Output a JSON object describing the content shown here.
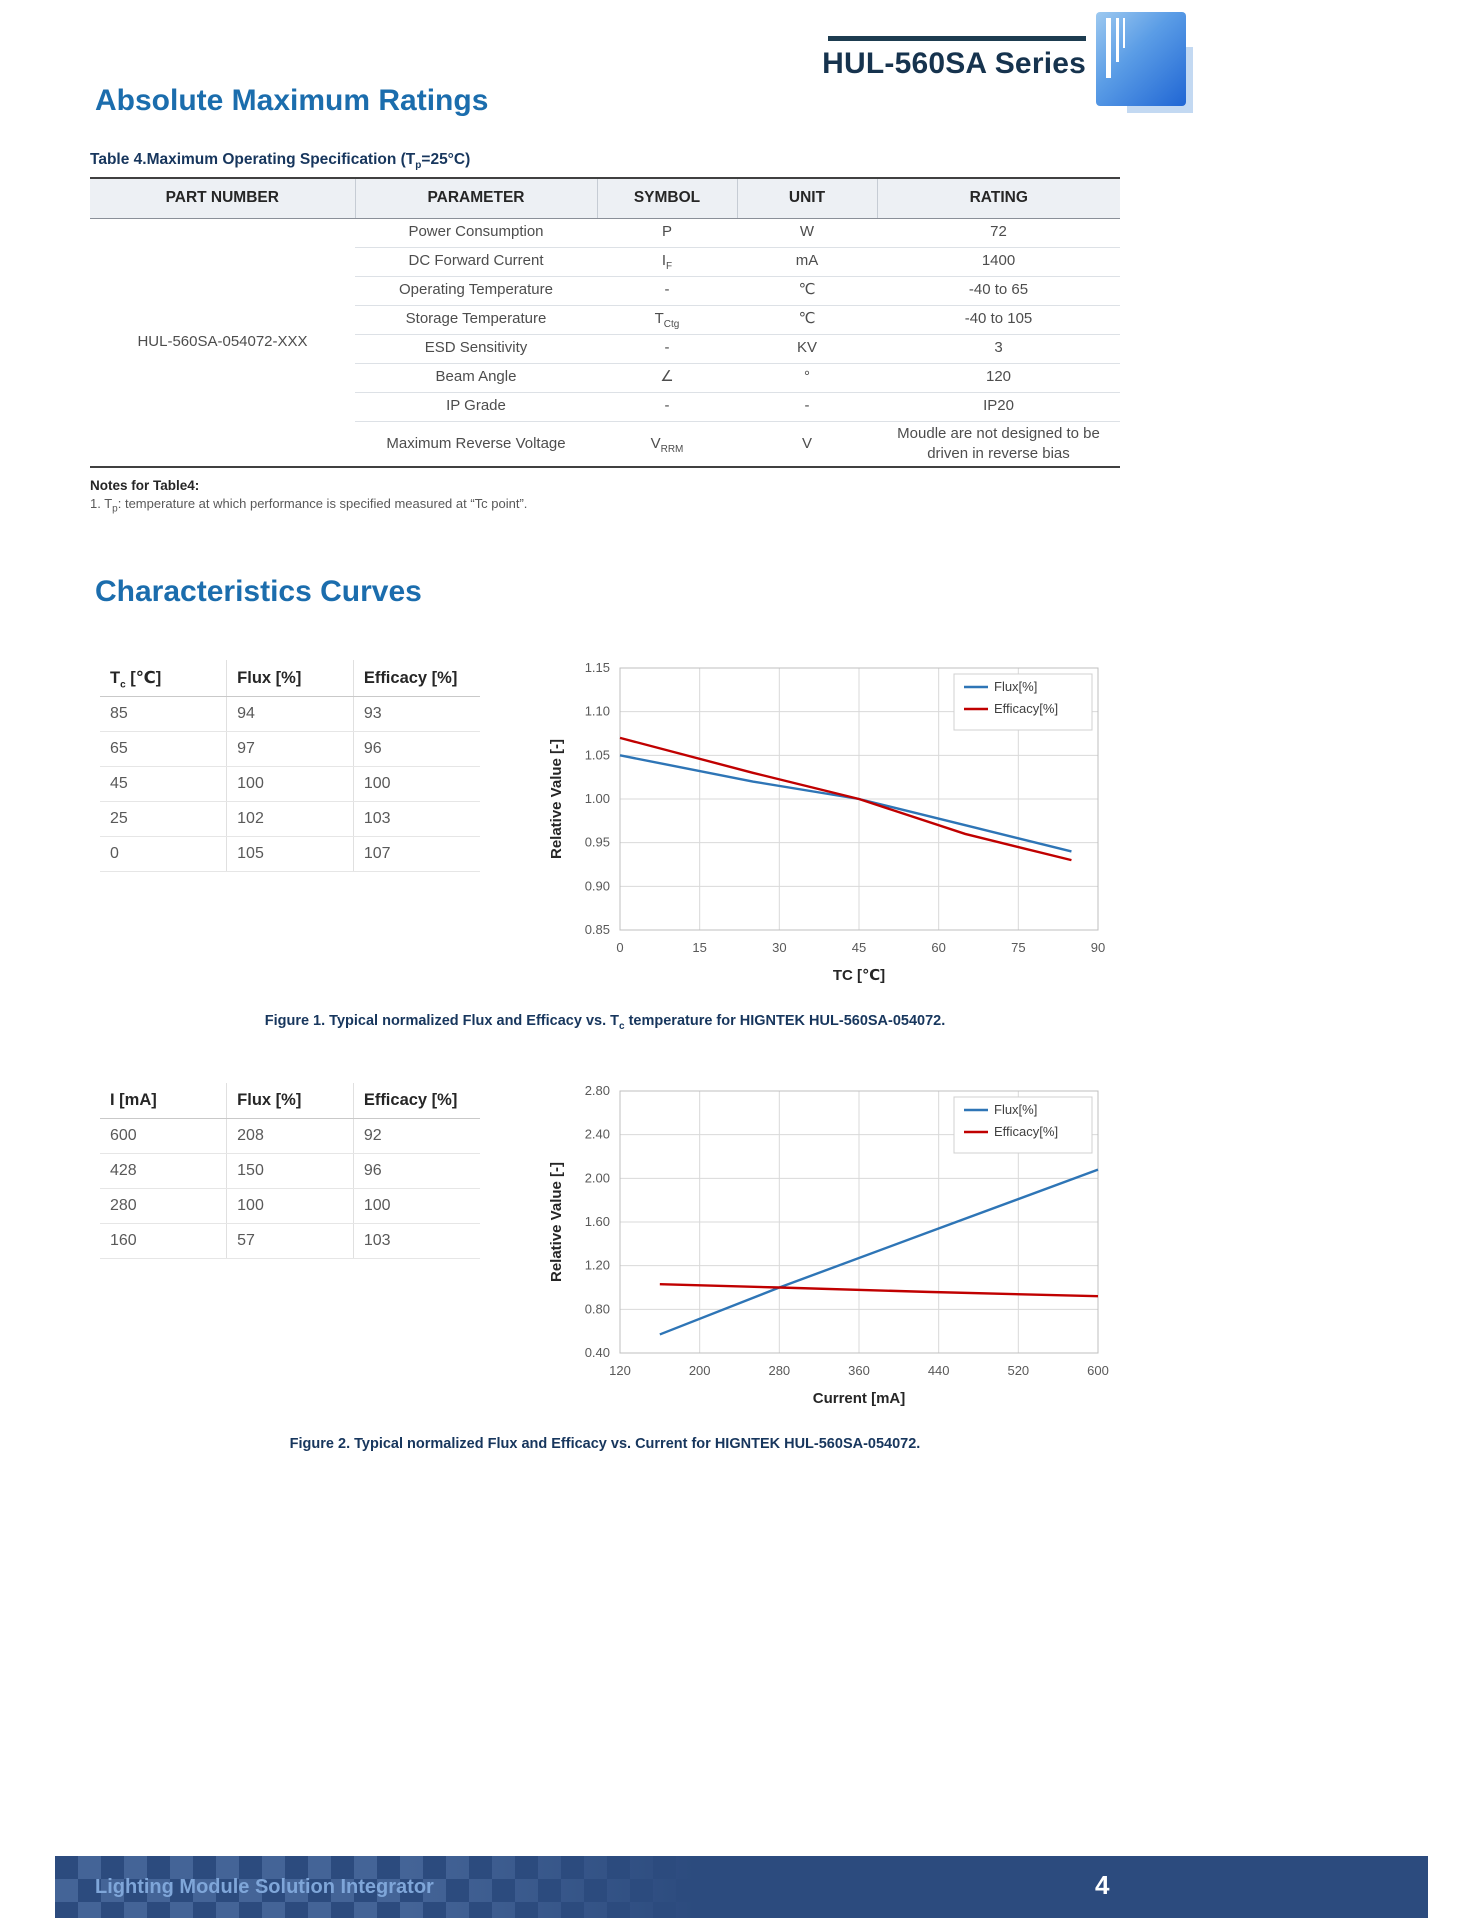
{
  "header": {
    "series_title": "HUL-560SA Series"
  },
  "abs_max": {
    "heading": "Absolute Maximum Ratings",
    "caption": {
      "pre": "Table 4.Maximum Operating Specification (T",
      "sub": "p",
      "post": "=25°C)"
    },
    "table": {
      "headers": [
        "PART NUMBER",
        "PARAMETER",
        "SYMBOL",
        "UNIT",
        "RATING"
      ],
      "part_number": "HUL-560SA-054072-XXX",
      "rows": [
        {
          "parameter": "Power Consumption",
          "symbol": {
            "pre": "P"
          },
          "unit": "W",
          "rating": "72"
        },
        {
          "parameter": "DC Forward Current",
          "symbol": {
            "pre": "I",
            "sub": "F"
          },
          "unit": "mA",
          "rating": "1400"
        },
        {
          "parameter": "Operating Temperature",
          "symbol": {
            "pre": "-"
          },
          "unit": "℃",
          "rating": "-40 to 65"
        },
        {
          "parameter": "Storage Temperature",
          "symbol": {
            "pre": "T",
            "sub": "Ctg"
          },
          "unit": "℃",
          "rating": "-40 to 105"
        },
        {
          "parameter": "ESD Sensitivity",
          "symbol": {
            "pre": "-"
          },
          "unit": "KV",
          "rating": "3"
        },
        {
          "parameter": "Beam Angle",
          "symbol": {
            "pre": "∠"
          },
          "unit": "°",
          "rating": "120"
        },
        {
          "parameter": "IP Grade",
          "symbol": {
            "pre": "-"
          },
          "unit": "-",
          "rating": "IP20"
        },
        {
          "parameter": "Maximum Reverse Voltage",
          "symbol": {
            "pre": "V",
            "sub": "RRM"
          },
          "unit": "V",
          "rating": "Moudle are not designed to be driven in reverse bias"
        }
      ]
    },
    "notes_title": "Notes for Table4:",
    "note1": {
      "pre": "1. T",
      "sub": "p",
      "post": ": temperature at which performance is specified measured at “Tc point”."
    }
  },
  "curves": {
    "heading": "Characteristics Curves",
    "table1": {
      "headers": [
        {
          "pre": "T",
          "sub": "c",
          "post": " [℃]"
        },
        {
          "pre": "Flux [%]"
        },
        {
          "pre": "Efficacy [%]"
        }
      ],
      "rows": [
        [
          "85",
          "94",
          "93"
        ],
        [
          "65",
          "97",
          "96"
        ],
        [
          "45",
          "100",
          "100"
        ],
        [
          "25",
          "102",
          "103"
        ],
        [
          "0",
          "105",
          "107"
        ]
      ]
    },
    "fig1_caption": {
      "pre": "Figure 1. Typical normalized Flux and Efficacy vs. T",
      "sub": "c",
      "post": " temperature for HIGNTEK HUL-560SA-054072."
    },
    "table2": {
      "headers": [
        {
          "pre": "I [mA]"
        },
        {
          "pre": "Flux [%]"
        },
        {
          "pre": "Efficacy [%]"
        }
      ],
      "rows": [
        [
          "600",
          "208",
          "92"
        ],
        [
          "428",
          "150",
          "96"
        ],
        [
          "280",
          "100",
          "100"
        ],
        [
          "160",
          "57",
          "103"
        ]
      ]
    },
    "fig2_caption": "Figure 2. Typical normalized Flux and Efficacy vs. Current for HIGNTEK HUL-560SA-054072."
  },
  "chart_data": [
    {
      "type": "line",
      "name": "flux-efficacy-vs-temperature",
      "title": "",
      "xlabel": "TC [℃]",
      "ylabel": "Relative Value [-]",
      "xlim": [
        0,
        90
      ],
      "ylim": [
        0.85,
        1.15
      ],
      "xticks": [
        "0",
        "15",
        "30",
        "45",
        "60",
        "75",
        "90"
      ],
      "yticks": [
        "0.85",
        "0.90",
        "0.95",
        "1.00",
        "1.05",
        "1.10",
        "1.15"
      ],
      "grid": true,
      "legend_position": "top-right",
      "series": [
        {
          "name": "Flux[%]",
          "color": "#2e75b6",
          "x": [
            0,
            25,
            45,
            65,
            85
          ],
          "y": [
            1.05,
            1.02,
            1.0,
            0.97,
            0.94
          ]
        },
        {
          "name": "Efficacy[%]",
          "color": "#c00000",
          "x": [
            0,
            25,
            45,
            65,
            85
          ],
          "y": [
            1.07,
            1.03,
            1.0,
            0.96,
            0.93
          ]
        }
      ]
    },
    {
      "type": "line",
      "name": "flux-efficacy-vs-current",
      "title": "",
      "xlabel": "Current [mA]",
      "ylabel": "Relative Value [-]",
      "xlim": [
        120,
        600
      ],
      "ylim": [
        0.4,
        2.8
      ],
      "xticks": [
        "120",
        "200",
        "280",
        "360",
        "440",
        "520",
        "600"
      ],
      "yticks": [
        "0.40",
        "0.80",
        "1.20",
        "1.60",
        "2.00",
        "2.40",
        "2.80"
      ],
      "grid": true,
      "legend_position": "top-right",
      "series": [
        {
          "name": "Flux[%]",
          "color": "#2e75b6",
          "x": [
            160,
            280,
            428,
            600
          ],
          "y": [
            0.57,
            1.0,
            1.5,
            2.08
          ]
        },
        {
          "name": "Efficacy[%]",
          "color": "#c00000",
          "x": [
            160,
            280,
            428,
            600
          ],
          "y": [
            1.03,
            1.0,
            0.96,
            0.92
          ]
        }
      ]
    }
  ],
  "footer": {
    "text": "Lighting Module Solution Integrator",
    "page_number": "4"
  },
  "colors": {
    "accent_blue": "#1b6dad",
    "navy": "#17365d",
    "flux_line": "#2e75b6",
    "efficacy_line": "#c00000",
    "footer_bg": "#2c4b7e"
  }
}
